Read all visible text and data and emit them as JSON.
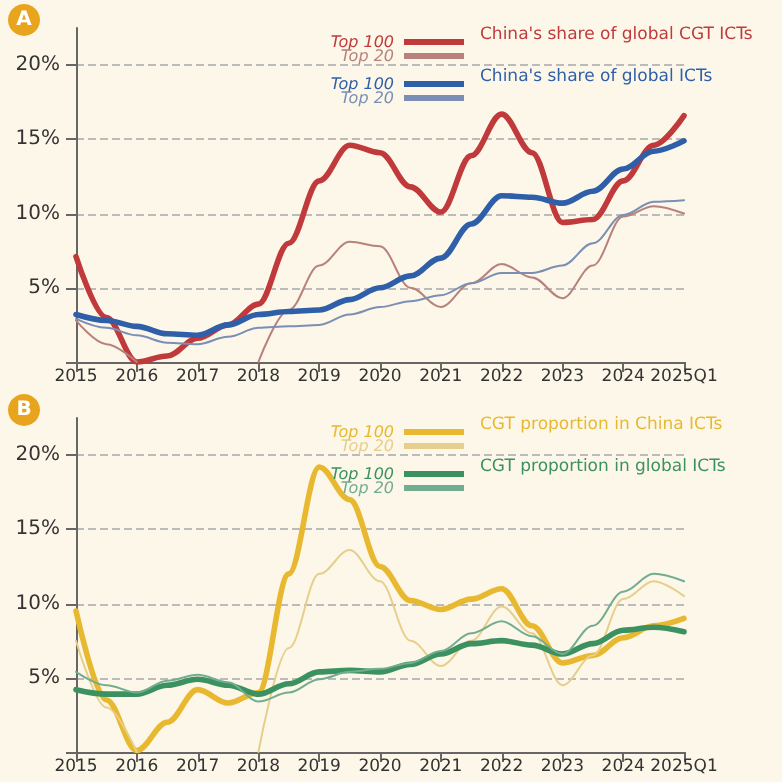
{
  "chart_data": [
    {
      "type": "line",
      "title": "A",
      "x": [
        2015,
        2015.5,
        2016,
        2016.5,
        2017,
        2017.5,
        2018,
        2018.5,
        2019,
        2019.5,
        2020,
        2020.5,
        2021,
        2021.5,
        2022,
        2022.5,
        2023,
        2023.5,
        2024,
        2024.5,
        2025
      ],
      "series": [
        {
          "name": "Top 100",
          "color": "#c0393b",
          "values": [
            7.1,
            3.0,
            0,
            0.4,
            1.6,
            2.5,
            3.9,
            8.0,
            12.2,
            14.6,
            14.1,
            11.8,
            10.1,
            13.9,
            16.7,
            14.1,
            9.4,
            9.6,
            12.2,
            14.6,
            16.6
          ]
        },
        {
          "name": "Top 20",
          "color": "#b9817c",
          "values": [
            2.8,
            1.2,
            0,
            null,
            null,
            null,
            0,
            3.5,
            6.5,
            8.1,
            7.8,
            5.0,
            3.7,
            5.3,
            6.6,
            5.7,
            4.3,
            6.5,
            9.8,
            10.5,
            10.0
          ]
        },
        {
          "name": "Top 100",
          "color": "#2e5fa8",
          "values": [
            3.2,
            2.8,
            2.4,
            1.9,
            1.8,
            2.5,
            3.2,
            3.4,
            3.5,
            4.2,
            5.0,
            5.8,
            7.0,
            9.3,
            11.2,
            11.1,
            10.7,
            11.5,
            13.0,
            14.2,
            14.9
          ]
        },
        {
          "name": "Top 20",
          "color": "#7b8fb5",
          "values": [
            2.9,
            2.3,
            1.8,
            1.3,
            1.2,
            1.7,
            2.3,
            2.4,
            2.5,
            3.2,
            3.7,
            4.1,
            4.5,
            5.3,
            6.0,
            6.0,
            6.5,
            8.0,
            9.9,
            10.8,
            10.9
          ]
        }
      ],
      "annotations": [
        "China's share of global CGT ICTs",
        "China's share of global ICTs"
      ],
      "xlim": [
        2015,
        2025
      ],
      "xticks": [
        2015,
        2016,
        2017,
        2018,
        2019,
        2020,
        2021,
        2022,
        2023,
        2024,
        {
          "value": 2025,
          "label": "2025Q1"
        }
      ],
      "ylim": [
        0,
        22.5
      ],
      "yticks": [
        {
          "value": 0,
          "label": null
        },
        {
          "value": 5,
          "label": "5%"
        },
        {
          "value": 10,
          "label": "10%"
        },
        {
          "value": 15,
          "label": "15%"
        },
        {
          "value": 20,
          "label": "20%"
        }
      ],
      "grid": "y",
      "legend": "top",
      "marker": "none",
      "line_style": "solid"
    },
    {
      "type": "line",
      "title": "B",
      "x": [
        2015,
        2015.5,
        2016,
        2016.5,
        2017,
        2017.5,
        2018,
        2018.5,
        2019,
        2019.5,
        2020,
        2020.5,
        2021,
        2021.5,
        2022,
        2022.5,
        2023,
        2023.5,
        2024,
        2024.5,
        2025
      ],
      "series": [
        {
          "name": "Top 100",
          "color": "#e8b930",
          "values": [
            9.5,
            3.5,
            0.1,
            2.0,
            4.2,
            3.3,
            4.0,
            12.0,
            19.2,
            17.0,
            12.5,
            10.2,
            9.6,
            10.3,
            11.0,
            8.5,
            6.0,
            6.5,
            7.7,
            8.5,
            9.0
          ]
        },
        {
          "name": "Top 20",
          "color": "#e6cf8c",
          "values": [
            7.5,
            3.0,
            0,
            null,
            null,
            null,
            0,
            7.0,
            12.0,
            13.6,
            11.5,
            7.5,
            5.8,
            7.5,
            9.8,
            8.0,
            4.5,
            6.5,
            10.3,
            11.5,
            10.5
          ]
        },
        {
          "name": "Top 100",
          "color": "#3b9160",
          "values": [
            4.2,
            3.9,
            3.9,
            4.5,
            4.9,
            4.5,
            3.9,
            4.6,
            5.4,
            5.5,
            5.4,
            5.9,
            6.6,
            7.3,
            7.5,
            7.2,
            6.6,
            7.3,
            8.2,
            8.4,
            8.1
          ]
        },
        {
          "name": "Top 20",
          "color": "#72ad91",
          "values": [
            5.4,
            4.5,
            4.0,
            4.8,
            5.2,
            4.7,
            3.4,
            4.0,
            4.9,
            5.4,
            5.6,
            6.0,
            6.8,
            8.0,
            8.8,
            7.8,
            6.6,
            8.5,
            10.8,
            12.0,
            11.5
          ]
        }
      ],
      "annotations": [
        "CGT proportion in China ICTs",
        "CGT proportion in global ICTs"
      ],
      "xlim": [
        2015,
        2025
      ],
      "xticks": [
        2015,
        2016,
        2017,
        2018,
        2019,
        2020,
        2021,
        2022,
        2023,
        2024,
        {
          "value": 2025,
          "label": "2025Q1"
        }
      ],
      "ylim": [
        0,
        22.5
      ],
      "yticks": [
        {
          "value": 0,
          "label": null
        },
        {
          "value": 5,
          "label": "5%"
        },
        {
          "value": 10,
          "label": "10%"
        },
        {
          "value": 15,
          "label": "15%"
        },
        {
          "value": 20,
          "label": "20%"
        }
      ],
      "grid": "y",
      "legend": "top",
      "marker": "none",
      "line_style": "solid"
    }
  ]
}
